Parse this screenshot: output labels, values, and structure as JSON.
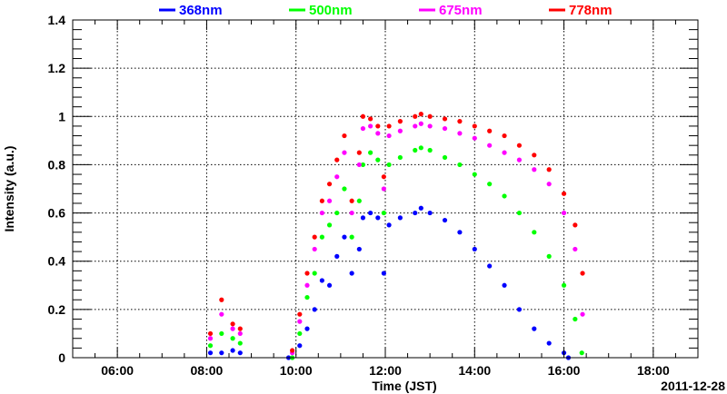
{
  "chart_data": {
    "type": "scatter",
    "xlabel": "Time (JST)",
    "ylabel": "Intensity (a.u.)",
    "date_label": "2011-12-28",
    "xlim": [
      "05:00",
      "19:00"
    ],
    "ylim": [
      0,
      1.4
    ],
    "grid": true,
    "legend_placement": "top",
    "x_ticks": [
      "06:00",
      "08:00",
      "10:00",
      "12:00",
      "14:00",
      "16:00",
      "18:00"
    ],
    "y_ticks": [
      "0",
      "0.2",
      "0.4",
      "0.6",
      "0.8",
      "1",
      "1.2",
      "1.4"
    ],
    "series": [
      {
        "name": "368nm",
        "color": "#0000ff",
        "points": [
          [
            "08:05",
            0.02
          ],
          [
            "08:20",
            0.02
          ],
          [
            "08:35",
            0.03
          ],
          [
            "08:45",
            0.02
          ],
          [
            "09:50",
            0.0
          ],
          [
            "10:05",
            0.05
          ],
          [
            "10:15",
            0.12
          ],
          [
            "10:25",
            0.2
          ],
          [
            "10:35",
            0.32
          ],
          [
            "10:45",
            0.3
          ],
          [
            "10:55",
            0.42
          ],
          [
            "11:05",
            0.5
          ],
          [
            "11:15",
            0.35
          ],
          [
            "11:25",
            0.45
          ],
          [
            "11:30",
            0.58
          ],
          [
            "11:40",
            0.6
          ],
          [
            "11:50",
            0.58
          ],
          [
            "11:58",
            0.35
          ],
          [
            "12:05",
            0.55
          ],
          [
            "12:20",
            0.58
          ],
          [
            "12:40",
            0.6
          ],
          [
            "12:48",
            0.62
          ],
          [
            "13:00",
            0.6
          ],
          [
            "13:20",
            0.57
          ],
          [
            "13:40",
            0.52
          ],
          [
            "14:00",
            0.45
          ],
          [
            "14:20",
            0.38
          ],
          [
            "14:40",
            0.3
          ],
          [
            "15:00",
            0.2
          ],
          [
            "15:20",
            0.12
          ],
          [
            "15:40",
            0.06
          ],
          [
            "16:00",
            0.02
          ],
          [
            "16:06",
            0.0
          ]
        ]
      },
      {
        "name": "500nm",
        "color": "#00ff00",
        "points": [
          [
            "08:05",
            0.05
          ],
          [
            "08:20",
            0.1
          ],
          [
            "08:35",
            0.08
          ],
          [
            "08:45",
            0.06
          ],
          [
            "09:55",
            0.0
          ],
          [
            "10:05",
            0.1
          ],
          [
            "10:15",
            0.25
          ],
          [
            "10:25",
            0.35
          ],
          [
            "10:35",
            0.5
          ],
          [
            "10:45",
            0.55
          ],
          [
            "10:55",
            0.6
          ],
          [
            "11:05",
            0.7
          ],
          [
            "11:15",
            0.5
          ],
          [
            "11:25",
            0.65
          ],
          [
            "11:30",
            0.8
          ],
          [
            "11:40",
            0.85
          ],
          [
            "11:50",
            0.82
          ],
          [
            "11:58",
            0.6
          ],
          [
            "12:05",
            0.8
          ],
          [
            "12:20",
            0.83
          ],
          [
            "12:40",
            0.86
          ],
          [
            "12:48",
            0.87
          ],
          [
            "13:00",
            0.86
          ],
          [
            "13:20",
            0.83
          ],
          [
            "13:40",
            0.8
          ],
          [
            "14:00",
            0.76
          ],
          [
            "14:20",
            0.72
          ],
          [
            "14:40",
            0.67
          ],
          [
            "15:00",
            0.6
          ],
          [
            "15:20",
            0.52
          ],
          [
            "15:40",
            0.42
          ],
          [
            "16:00",
            0.3
          ],
          [
            "16:15",
            0.16
          ],
          [
            "16:24",
            0.02
          ]
        ]
      },
      {
        "name": "675nm",
        "color": "#ff00ff",
        "points": [
          [
            "08:05",
            0.08
          ],
          [
            "08:20",
            0.18
          ],
          [
            "08:35",
            0.12
          ],
          [
            "08:45",
            0.1
          ],
          [
            "09:55",
            0.02
          ],
          [
            "10:05",
            0.15
          ],
          [
            "10:15",
            0.3
          ],
          [
            "10:25",
            0.45
          ],
          [
            "10:35",
            0.6
          ],
          [
            "10:45",
            0.65
          ],
          [
            "10:55",
            0.75
          ],
          [
            "11:05",
            0.85
          ],
          [
            "11:15",
            0.6
          ],
          [
            "11:25",
            0.8
          ],
          [
            "11:30",
            0.95
          ],
          [
            "11:40",
            0.96
          ],
          [
            "11:50",
            0.93
          ],
          [
            "11:58",
            0.7
          ],
          [
            "12:05",
            0.92
          ],
          [
            "12:20",
            0.94
          ],
          [
            "12:40",
            0.96
          ],
          [
            "12:48",
            0.97
          ],
          [
            "13:00",
            0.96
          ],
          [
            "13:20",
            0.95
          ],
          [
            "13:40",
            0.93
          ],
          [
            "14:00",
            0.91
          ],
          [
            "14:20",
            0.88
          ],
          [
            "14:40",
            0.85
          ],
          [
            "15:00",
            0.82
          ],
          [
            "15:20",
            0.78
          ],
          [
            "15:40",
            0.72
          ],
          [
            "16:00",
            0.6
          ],
          [
            "16:15",
            0.45
          ],
          [
            "16:25",
            0.18
          ]
        ]
      },
      {
        "name": "778nm",
        "color": "#ff0000",
        "points": [
          [
            "08:05",
            0.1
          ],
          [
            "08:20",
            0.24
          ],
          [
            "08:35",
            0.14
          ],
          [
            "08:45",
            0.12
          ],
          [
            "09:55",
            0.03
          ],
          [
            "10:05",
            0.18
          ],
          [
            "10:15",
            0.35
          ],
          [
            "10:25",
            0.5
          ],
          [
            "10:35",
            0.65
          ],
          [
            "10:45",
            0.72
          ],
          [
            "10:55",
            0.82
          ],
          [
            "11:05",
            0.92
          ],
          [
            "11:15",
            0.65
          ],
          [
            "11:25",
            0.85
          ],
          [
            "11:30",
            1.0
          ],
          [
            "11:40",
            0.99
          ],
          [
            "11:50",
            0.96
          ],
          [
            "11:58",
            0.75
          ],
          [
            "12:05",
            0.96
          ],
          [
            "12:20",
            0.98
          ],
          [
            "12:40",
            1.0
          ],
          [
            "12:48",
            1.01
          ],
          [
            "13:00",
            1.0
          ],
          [
            "13:20",
            0.99
          ],
          [
            "13:40",
            0.98
          ],
          [
            "14:00",
            0.96
          ],
          [
            "14:20",
            0.94
          ],
          [
            "14:40",
            0.92
          ],
          [
            "15:00",
            0.88
          ],
          [
            "15:20",
            0.84
          ],
          [
            "15:40",
            0.78
          ],
          [
            "16:00",
            0.68
          ],
          [
            "16:15",
            0.55
          ],
          [
            "16:25",
            0.35
          ]
        ]
      }
    ]
  }
}
